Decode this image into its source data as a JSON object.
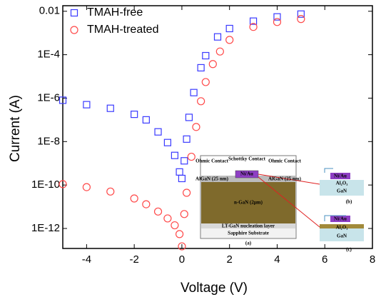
{
  "chart_data": {
    "type": "scatter",
    "xlabel": "Voltage (V)",
    "ylabel": "Current (A)",
    "xlim": [
      -5,
      8
    ],
    "xticks": [
      -4,
      -2,
      0,
      2,
      4,
      6,
      8
    ],
    "ylim": [
      1.2e-13,
      0.018
    ],
    "yticks": [
      0.01,
      {
        "value": 0.0001,
        "label": "1E-4"
      },
      {
        "value": 1e-06,
        "label": "1E-6"
      },
      {
        "value": 1e-08,
        "label": "1E-8"
      },
      {
        "value": 1e-10,
        "label": "1E-10"
      },
      {
        "value": 1e-12,
        "label": "1E-12"
      }
    ],
    "log_y": true,
    "legend": "upper left",
    "series": [
      {
        "name": "TMAH-free",
        "color": "#3a3aff",
        "marker": "square",
        "x": [
          -5,
          -4,
          -3,
          -2,
          -1.5,
          -1,
          -0.6,
          -0.3,
          -0.1,
          0,
          0.1,
          0.2,
          0.3,
          0.5,
          0.8,
          1,
          1.5,
          2,
          3,
          4,
          5
        ],
        "values": [
          8e-07,
          5e-07,
          3.4e-07,
          1.8e-07,
          1e-07,
          2.8e-08,
          9e-09,
          2.3e-09,
          4e-10,
          2e-10,
          1.3e-09,
          1.3e-08,
          1.3e-07,
          1.8e-06,
          2.5e-05,
          9e-05,
          0.00066,
          0.0016,
          0.0035,
          0.0055,
          0.0074
        ]
      },
      {
        "name": "TMAH-treated",
        "color": "#ff4a4a",
        "marker": "circle",
        "x": [
          -5,
          -4,
          -3,
          -2,
          -1.5,
          -1,
          -0.6,
          -0.3,
          -0.1,
          0,
          0.1,
          0.2,
          0.4,
          0.6,
          0.8,
          1,
          1.3,
          1.6,
          2,
          3,
          4,
          5
        ],
        "values": [
          1.1e-10,
          8e-11,
          5e-11,
          2.4e-11,
          1.3e-11,
          6e-12,
          2.9e-12,
          1.4e-12,
          5.5e-13,
          1.5e-13,
          4.6e-12,
          4.4e-11,
          2e-09,
          4.7e-08,
          7.2e-07,
          5.5e-06,
          3.7e-05,
          0.00014,
          0.00048,
          0.0019,
          0.0032,
          0.0044
        ]
      }
    ],
    "inset": {
      "ohmic_left": "Ohmic Contact",
      "schottky": "Schottky Contact",
      "ohmic_right": "Ohmic Contact",
      "algan_left": "AlGaN (25 nm)",
      "gate": "Ni/Au",
      "algan_right": "AlGaN (25 nm)",
      "ngan": "n-GaN (2μm)",
      "nucleation": "LT-GaN nucleation layer",
      "substrate": "Sapphire Substrate",
      "panel_a": "(a)",
      "b_gate": "Ni/Au",
      "b_oxide": "Al₂O₃",
      "b_gan": "GaN",
      "panel_b": "(b)",
      "c_gate": "Ni/Au",
      "c_oxide": "Al₂O₃",
      "c_gan": "GaN",
      "panel_c": "(c)"
    }
  }
}
